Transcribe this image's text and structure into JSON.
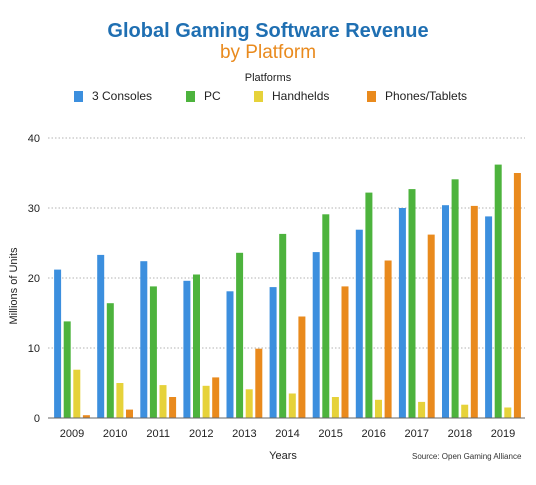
{
  "colors": {
    "title": "#1f6fb2",
    "subtitle": "#e98a1d",
    "series": [
      "#3c8fde",
      "#4db33d",
      "#e6d23a",
      "#e98a1d"
    ]
  },
  "source": "Source: Open Gaming Alliance",
  "chart_data": {
    "type": "bar",
    "title": "Global Gaming Software Revenue",
    "subtitle": "by Platform",
    "legend_title": "Platforms",
    "legend_position": "top",
    "xlabel": "Years",
    "ylabel": "Millions of Units",
    "ylim": [
      0,
      40
    ],
    "yticks": [
      0,
      10,
      20,
      30,
      40
    ],
    "grid": true,
    "categories": [
      "2009",
      "2010",
      "2011",
      "2012",
      "2013",
      "2014",
      "2015",
      "2016",
      "2017",
      "2018",
      "2019"
    ],
    "series": [
      {
        "name": "3 Consoles",
        "values": [
          21.2,
          23.3,
          22.4,
          19.6,
          18.1,
          18.7,
          23.7,
          26.9,
          30.0,
          30.4,
          28.8
        ]
      },
      {
        "name": "PC",
        "values": [
          13.8,
          16.4,
          18.8,
          20.5,
          23.6,
          26.3,
          29.1,
          32.2,
          32.7,
          34.1,
          36.2
        ]
      },
      {
        "name": "Handhelds",
        "values": [
          6.9,
          5.0,
          4.7,
          4.6,
          4.1,
          3.5,
          3.0,
          2.6,
          2.3,
          1.9,
          1.5
        ]
      },
      {
        "name": "Phones/Tablets",
        "values": [
          0.4,
          1.2,
          3.0,
          5.8,
          9.9,
          14.5,
          18.8,
          22.5,
          26.2,
          30.3,
          35.0
        ]
      }
    ]
  }
}
